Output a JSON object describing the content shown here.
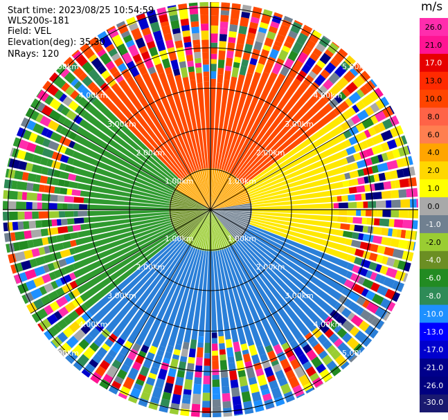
{
  "header": {
    "start_time": "Start time: 2023/08/25 10:54:59",
    "instrument": "WLS200s-181",
    "field": "Field: VEL",
    "elevation": "Elevation(deg): 35.30",
    "nrays": "NRays: 120"
  },
  "rings": {
    "labels": [
      "1.00km",
      "2.00km",
      "3.00km",
      "4.00km",
      "5.00km"
    ]
  },
  "colorbar": {
    "unit": "m/s",
    "tick_labels": [
      "26.0",
      "21.0",
      "17.0",
      "13.0",
      "10.0",
      "8.0",
      "6.0",
      "4.0",
      "2.0",
      "1.0",
      "0.0",
      "-1.0",
      "-2.0",
      "-4.0",
      "-6.0",
      "-8.0",
      "-10.0",
      "-13.0",
      "-17.0",
      "-21.0",
      "-26.0",
      "-30.0"
    ],
    "bins": [
      {
        "color": "#ff2dad"
      },
      {
        "color": "#ff1493"
      },
      {
        "color": "#e60000"
      },
      {
        "color": "#ff2a00"
      },
      {
        "color": "#ff4500"
      },
      {
        "color": "#ff6347"
      },
      {
        "color": "#ff7f50"
      },
      {
        "color": "#ffa500"
      },
      {
        "color": "#ffd700"
      },
      {
        "color": "#ffff00"
      },
      {
        "color": "#a9a9a9"
      },
      {
        "color": "#708090"
      },
      {
        "color": "#9acd32"
      },
      {
        "color": "#6b8e23"
      },
      {
        "color": "#228b22"
      },
      {
        "color": "#2e8b57"
      },
      {
        "color": "#1e90ff"
      },
      {
        "color": "#0000ff"
      },
      {
        "color": "#0000cd"
      },
      {
        "color": "#00008b"
      },
      {
        "color": "#000080"
      },
      {
        "color": "#191970"
      }
    ]
  },
  "colors": {
    "north": "#ff4a00",
    "east": "#ffe800",
    "south": "#2a7fd8",
    "west": "#2f9a2f",
    "grid": "#000000",
    "ring_label": "#ffffff"
  }
}
